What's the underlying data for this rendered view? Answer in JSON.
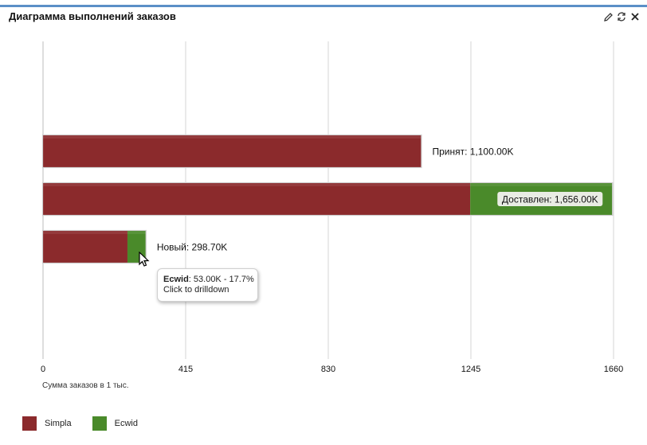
{
  "widget": {
    "title": "Диаграмма выполнений заказов",
    "icons": [
      "pencil-icon",
      "refresh-icon",
      "close-icon"
    ]
  },
  "colors": {
    "simpla": "#8b2a2c",
    "ecwid": "#4a8a2a",
    "accent": "#5b8fc7"
  },
  "chart_data": {
    "type": "bar",
    "orientation": "horizontal",
    "stacked": true,
    "categories": [
      "Принят",
      "Доставлен",
      "Новый"
    ],
    "series": [
      {
        "name": "Simpla",
        "values": [
          1100,
          1243,
          245.7
        ]
      },
      {
        "name": "Ecwid",
        "values": [
          0,
          413,
          53
        ]
      }
    ],
    "value_labels": [
      "Принят: 1,100.00K",
      "Доставлен: 1,656.00K",
      "Новый: 298.70K"
    ],
    "x_ticks": [
      "0",
      "415",
      "830",
      "1245",
      "1660"
    ],
    "xlim": [
      0,
      1660
    ],
    "xlabel": "Сумма заказов в 1 тыс.",
    "grid": true,
    "legend_position": "bottom-left"
  },
  "tooltip": {
    "series": "Ecwid",
    "value": ": 53.00K - 17.7%",
    "hint": "Click to drilldown"
  },
  "legend": [
    {
      "label": "Simpla"
    },
    {
      "label": "Ecwid"
    }
  ]
}
